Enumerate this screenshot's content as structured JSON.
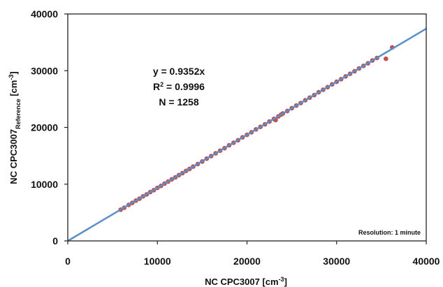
{
  "chart_data": {
    "type": "scatter",
    "xlabel": "NC CPC3007 [cm",
    "xlabel_sup": "-3",
    "xlabel_end": "]",
    "ylabel_main": "NC CPC3007",
    "ylabel_sub": "Reference",
    "ylabel_unit": " [cm",
    "ylabel_sup": "-3",
    "ylabel_end": "]",
    "xlim": [
      0,
      40000
    ],
    "ylim": [
      0,
      40000
    ],
    "x_ticks": [
      0,
      10000,
      20000,
      30000,
      40000
    ],
    "y_ticks": [
      0,
      10000,
      20000,
      30000,
      40000
    ],
    "x_tick_labels": [
      "0",
      "10000",
      "20000",
      "30000",
      "40000"
    ],
    "y_tick_labels": [
      "0",
      "10000",
      "20000",
      "30000",
      "40000"
    ],
    "grid": false,
    "fit": {
      "slope": 0.9352,
      "intercept": 0,
      "color": "#5b8fc7"
    },
    "annotation": {
      "equation": "y = 0.9352x",
      "r2_prefix": "R",
      "r2_sup": "2",
      "r2_rest": " = 0.9996",
      "n": "N = 1258"
    },
    "note": "Resolution: 1 minute",
    "point_color": "#c0504d",
    "series": [
      {
        "x": [
          5900,
          6300,
          6800,
          7200,
          7600,
          8000,
          8400,
          8800,
          9200,
          9600,
          10000,
          10400,
          10800,
          11200,
          11600,
          12000,
          12400,
          12800,
          13200,
          13600,
          14000,
          14500,
          15000,
          15500,
          16000,
          16500,
          17000,
          17500,
          18000,
          18500,
          19000,
          19500,
          20000,
          20500,
          21000,
          21500,
          22000,
          22500,
          23000,
          23200,
          23500,
          23800,
          24000,
          24500,
          25000,
          25500,
          26000,
          26500,
          27000,
          27500,
          28000,
          28500,
          29000,
          29500,
          30000,
          30500,
          31000,
          31500,
          32000,
          32500,
          33000,
          33500,
          34000,
          34500,
          35500,
          36200
        ],
        "y": [
          5500,
          5850,
          6350,
          6700,
          7100,
          7450,
          7850,
          8200,
          8600,
          8950,
          9350,
          9700,
          10100,
          10450,
          10850,
          11200,
          11600,
          11950,
          12350,
          12700,
          13100,
          13550,
          14000,
          14500,
          14950,
          15450,
          15900,
          16350,
          16850,
          17300,
          17750,
          18250,
          18700,
          19150,
          19650,
          20100,
          20550,
          21050,
          21500,
          21300,
          21950,
          22250,
          22450,
          22900,
          23400,
          23850,
          24300,
          24800,
          25250,
          25700,
          26200,
          26650,
          27100,
          27600,
          28050,
          28500,
          29000,
          29450,
          29900,
          30400,
          30850,
          31300,
          31800,
          32250,
          32100,
          34100
        ]
      }
    ]
  }
}
